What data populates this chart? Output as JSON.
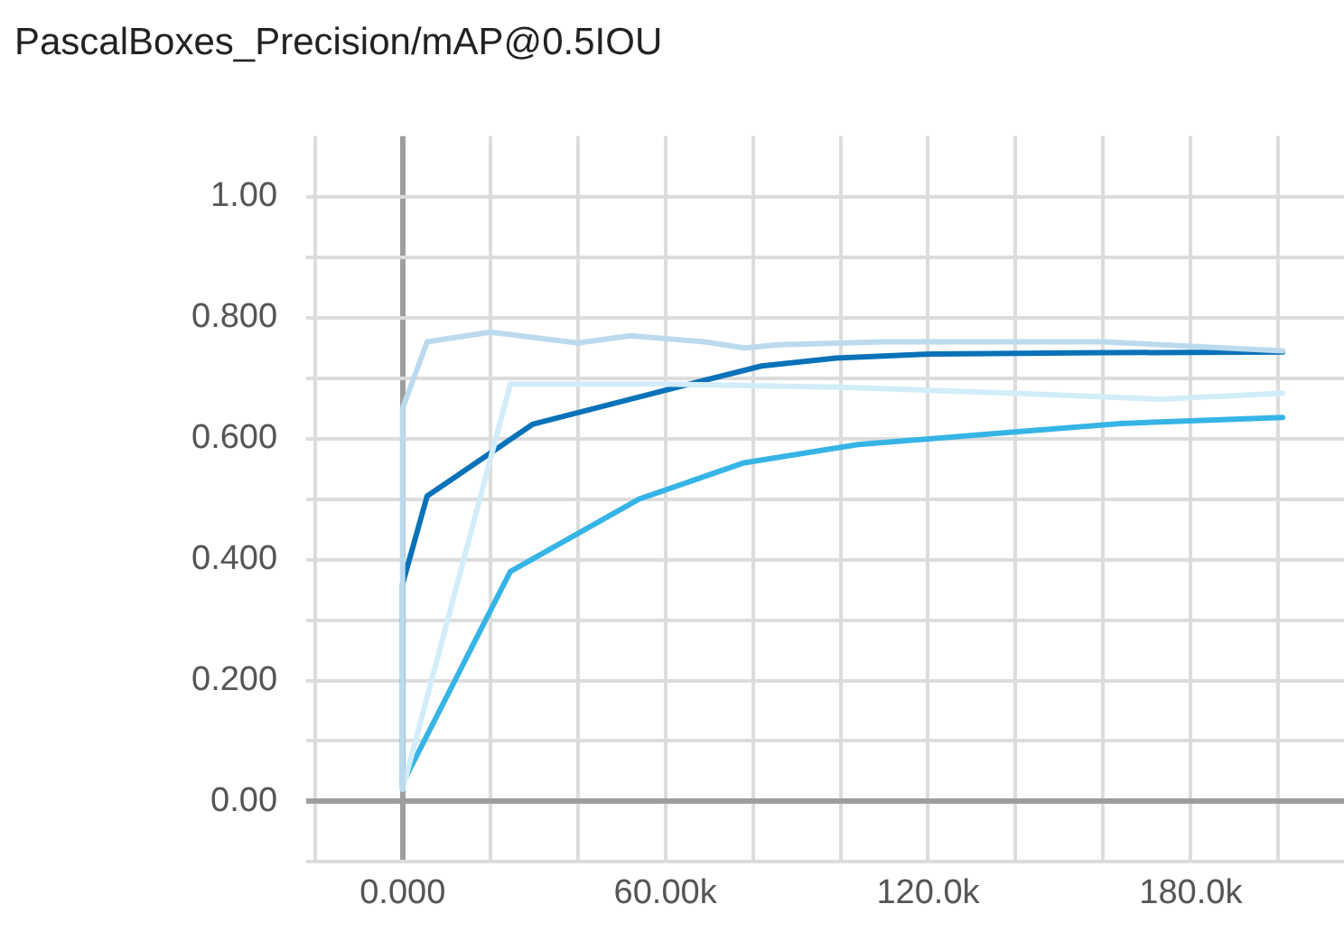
{
  "chart_data": {
    "type": "line",
    "title": "PascalBoxes_Precision/mAP@0.5IOU",
    "series": [
      {
        "color": "#bcdaee",
        "x": [
          0,
          0,
          5600,
          20000,
          40000,
          52000,
          69000,
          78000,
          86000,
          110000,
          160000,
          201000
        ],
        "values": [
          0.02,
          0.65,
          0.76,
          0.776,
          0.758,
          0.77,
          0.76,
          0.75,
          0.755,
          0.76,
          0.76,
          0.745
        ]
      },
      {
        "color": "#d2edf9",
        "x": [
          0,
          24600,
          60000,
          100000,
          140000,
          173000,
          201000
        ],
        "values": [
          0.02,
          0.69,
          0.69,
          0.685,
          0.675,
          0.665,
          0.675
        ]
      },
      {
        "color": "#0a72b8",
        "x": [
          0,
          0,
          5600,
          29800,
          60000,
          82000,
          99000,
          121000,
          160000,
          201000
        ],
        "values": [
          0.02,
          0.36,
          0.505,
          0.624,
          0.68,
          0.72,
          0.733,
          0.74,
          0.742,
          0.743
        ]
      },
      {
        "color": "#36b4e6",
        "x": [
          0,
          24600,
          54000,
          78000,
          104000,
          138000,
          164000,
          201000
        ],
        "values": [
          0.03,
          0.38,
          0.5,
          0.56,
          0.59,
          0.61,
          0.625,
          0.635
        ]
      }
    ],
    "xlim": [
      -22000,
      215000
    ],
    "xticks": [
      {
        "value": -20000,
        "label": null
      },
      {
        "value": 0,
        "label": "0.000"
      },
      {
        "value": 20000,
        "label": null
      },
      {
        "value": 40000,
        "label": null
      },
      {
        "value": 60000,
        "label": "60.00k"
      },
      {
        "value": 80000,
        "label": null
      },
      {
        "value": 100000,
        "label": null
      },
      {
        "value": 120000,
        "label": "120.0k"
      },
      {
        "value": 140000,
        "label": null
      },
      {
        "value": 160000,
        "label": null
      },
      {
        "value": 180000,
        "label": "180.0k"
      },
      {
        "value": 200000,
        "label": null
      }
    ],
    "ylim": [
      -0.1,
      1.1
    ],
    "yticks": [
      {
        "value": -0.1,
        "label": null
      },
      {
        "value": 0,
        "label": "0.00"
      },
      {
        "value": 0.1,
        "label": null
      },
      {
        "value": 0.2,
        "label": "0.200"
      },
      {
        "value": 0.3,
        "label": null
      },
      {
        "value": 0.4,
        "label": "0.400"
      },
      {
        "value": 0.5,
        "label": null
      },
      {
        "value": 0.6,
        "label": "0.600"
      },
      {
        "value": 0.7,
        "label": null
      },
      {
        "value": 0.8,
        "label": "0.800"
      },
      {
        "value": 0.9,
        "label": null
      },
      {
        "value": 1.0,
        "label": "1.00"
      }
    ],
    "grid": true,
    "legend": false,
    "marker": "none",
    "line_style": "solid"
  }
}
